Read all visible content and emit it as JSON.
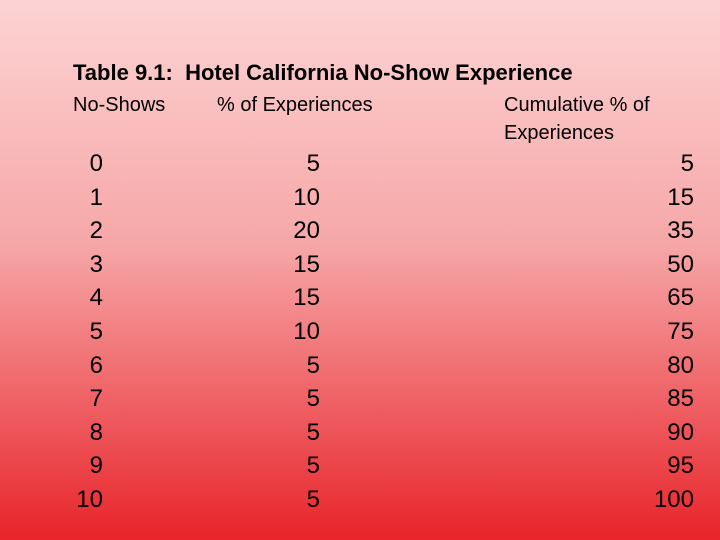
{
  "table": {
    "title": "Table 9.1:  Hotel California No-Show Experience",
    "headers": [
      "No-Shows",
      "% of Experiences",
      "Cumulative % of Experiences"
    ],
    "rows": [
      [
        0,
        5,
        5
      ],
      [
        1,
        10,
        15
      ],
      [
        2,
        20,
        35
      ],
      [
        3,
        15,
        50
      ],
      [
        4,
        15,
        65
      ],
      [
        5,
        10,
        75
      ],
      [
        6,
        5,
        80
      ],
      [
        7,
        5,
        85
      ],
      [
        8,
        5,
        90
      ],
      [
        9,
        5,
        95
      ],
      [
        10,
        5,
        100
      ]
    ]
  }
}
